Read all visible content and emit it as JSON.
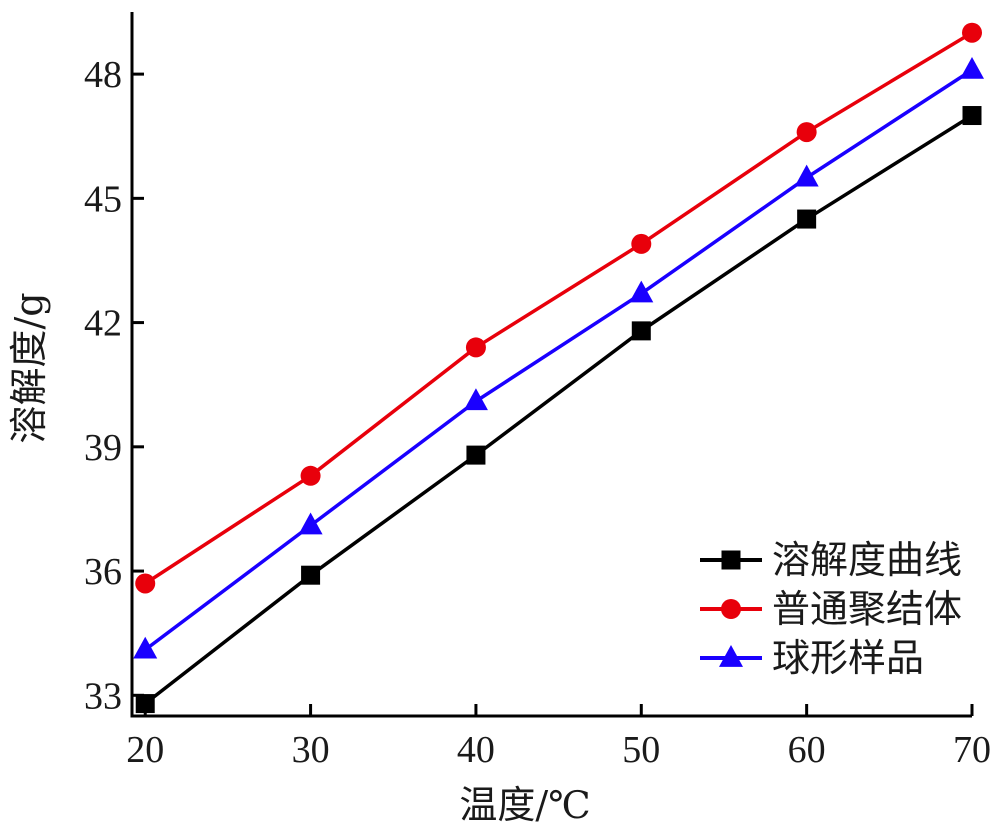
{
  "chart_data": {
    "type": "line",
    "xlabel": "温度/℃",
    "ylabel": "溶解度/g",
    "x": [
      20,
      30,
      40,
      50,
      60,
      70
    ],
    "xlim": [
      19.2,
      70
    ],
    "ylim": [
      32.5,
      49.5
    ],
    "xticks": [
      20,
      30,
      40,
      50,
      60,
      70
    ],
    "yticks": [
      33,
      36,
      39,
      42,
      45,
      48
    ],
    "grid": false,
    "legend_position": "bottom-right",
    "series": [
      {
        "name": "溶解度曲线",
        "color": "#000000",
        "marker": "square",
        "values": [
          32.8,
          35.9,
          38.8,
          41.8,
          44.5,
          47.0
        ]
      },
      {
        "name": "普通聚结体",
        "color": "#e8000b",
        "marker": "circle",
        "values": [
          35.7,
          38.3,
          41.4,
          43.9,
          46.6,
          49.0
        ]
      },
      {
        "name": "球形样品",
        "color": "#1a00ff",
        "marker": "triangle",
        "values": [
          34.1,
          37.1,
          40.1,
          42.7,
          45.5,
          48.1
        ]
      }
    ]
  }
}
